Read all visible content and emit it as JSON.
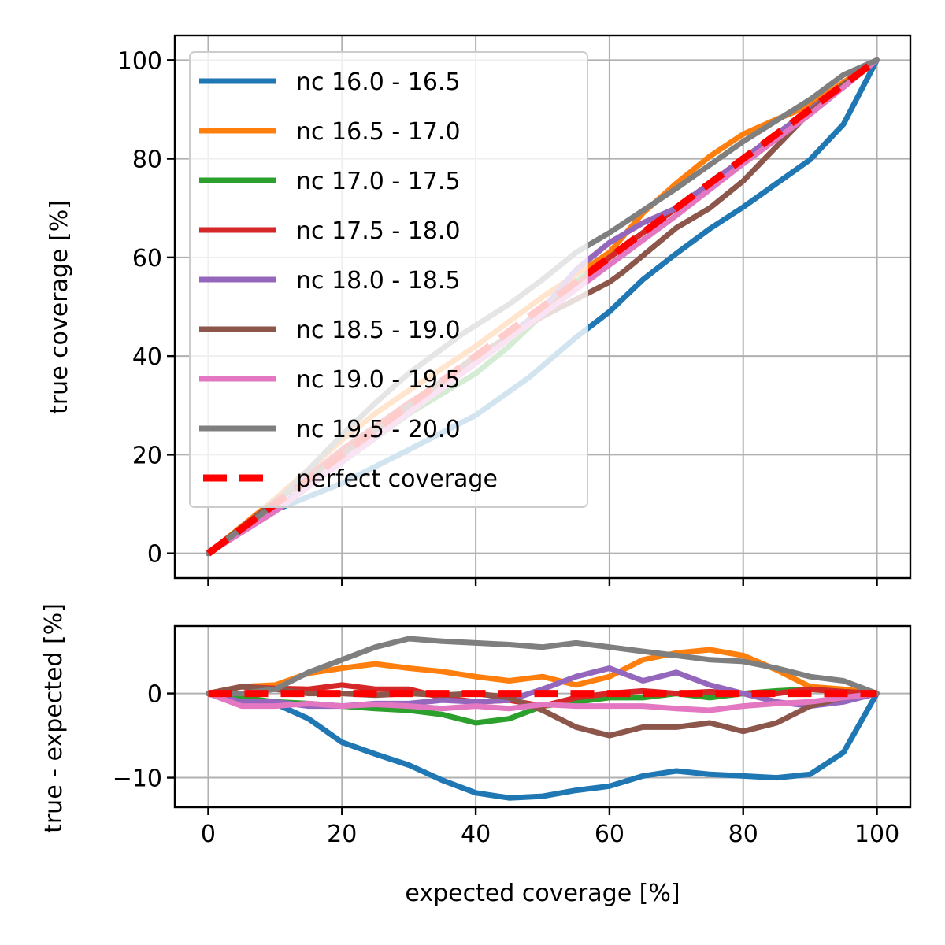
{
  "chart_data": [
    {
      "type": "line",
      "panel": "main",
      "xlim": [
        -5,
        105
      ],
      "ylim": [
        -5,
        105
      ],
      "xticks": [
        0,
        20,
        40,
        60,
        80,
        100
      ],
      "yticks": [
        0,
        20,
        40,
        60,
        80,
        100
      ],
      "xticks_labelled": false,
      "ylabel": "true coverage [%]",
      "grid": true,
      "legend": "upper-left",
      "series": [
        {
          "name": "nc 16.0 - 16.5",
          "color": "#1f77b4",
          "x": [
            0,
            10,
            20,
            30,
            40,
            48,
            55,
            60,
            65,
            70,
            75,
            80,
            85,
            90,
            95,
            100
          ],
          "y": [
            0,
            8.8,
            14.2,
            21.0,
            28.0,
            35.7,
            43.8,
            49.0,
            55.5,
            60.8,
            65.8,
            70.2,
            75.0,
            79.8,
            87.0,
            100
          ]
        },
        {
          "name": "nc 16.5 - 17.0",
          "color": "#ff7f0e",
          "x": [
            0,
            10,
            20,
            25,
            30,
            40,
            50,
            60,
            65,
            70,
            75,
            80,
            85,
            90,
            95,
            100
          ],
          "y": [
            0,
            11.0,
            23.0,
            28.4,
            33.0,
            42.0,
            52.0,
            61.0,
            69.0,
            75.0,
            80.5,
            85.0,
            88.0,
            90.8,
            95.5,
            100
          ]
        },
        {
          "name": "nc 17.0 - 17.5",
          "color": "#2ca02c",
          "x": [
            0,
            10,
            20,
            30,
            40,
            45,
            50,
            55,
            60,
            70,
            80,
            90,
            100
          ],
          "y": [
            0,
            9.0,
            18.5,
            28.3,
            36.5,
            42.0,
            48.5,
            55.0,
            60.0,
            70.0,
            80.0,
            90.0,
            100
          ]
        },
        {
          "name": "nc 17.5 - 18.0",
          "color": "#d62728",
          "x": [
            0,
            10,
            20,
            30,
            40,
            50,
            60,
            70,
            80,
            90,
            100
          ],
          "y": [
            0,
            10.5,
            21.0,
            30.5,
            39.0,
            48.5,
            60.0,
            70.0,
            80.0,
            90.0,
            100
          ]
        },
        {
          "name": "nc 18.0 - 18.5",
          "color": "#9467bd",
          "x": [
            0,
            10,
            20,
            30,
            40,
            50,
            55,
            60,
            65,
            70,
            80,
            90,
            95,
            100
          ],
          "y": [
            0,
            9.0,
            18.5,
            28.8,
            39.0,
            49.5,
            57.5,
            63.0,
            67.0,
            70.0,
            80.0,
            90.0,
            94.5,
            100
          ]
        },
        {
          "name": "nc 18.5 - 19.0",
          "color": "#8c564b",
          "x": [
            0,
            10,
            20,
            30,
            40,
            50,
            60,
            62,
            70,
            75,
            80,
            85,
            90,
            95,
            100
          ],
          "y": [
            0,
            10.5,
            20.0,
            30.0,
            40.0,
            48.0,
            55.0,
            57.0,
            66.0,
            70.0,
            75.5,
            82.5,
            89.5,
            95.0,
            100
          ]
        },
        {
          "name": "nc 19.0 - 19.5",
          "color": "#e377c2",
          "x": [
            0,
            10,
            20,
            30,
            40,
            50,
            60,
            70,
            80,
            90,
            100
          ],
          "y": [
            0,
            8.5,
            18.5,
            28.5,
            38.5,
            48.5,
            58.5,
            68.5,
            79.0,
            89.0,
            100
          ]
        },
        {
          "name": "nc 19.5 - 20.0",
          "color": "#7f7f7f",
          "x": [
            0,
            10,
            20,
            25,
            30,
            38,
            45,
            50,
            55,
            60,
            70,
            80,
            90,
            95,
            100
          ],
          "y": [
            0,
            10.0,
            24.0,
            30.5,
            36.5,
            44.5,
            50.5,
            55.5,
            61.0,
            65.0,
            74.0,
            83.5,
            92.0,
            97.0,
            100
          ]
        },
        {
          "name": "perfect coverage",
          "color": "#ff0000",
          "dashed": true,
          "x": [
            0,
            100
          ],
          "y": [
            0,
            100
          ]
        }
      ]
    },
    {
      "type": "line",
      "panel": "residual",
      "xlim": [
        -5,
        105
      ],
      "ylim": [
        -13.5,
        8
      ],
      "xticks": [
        0,
        20,
        40,
        60,
        80,
        100
      ],
      "yticks": [
        -10,
        0
      ],
      "xlabel": "expected coverage [%]",
      "ylabel": "true - expected [%]",
      "grid": true,
      "series": [
        {
          "name": "nc 16.0 - 16.5",
          "color": "#1f77b4",
          "x": [
            0,
            5,
            10,
            15,
            20,
            25,
            30,
            35,
            40,
            45,
            50,
            55,
            60,
            65,
            70,
            75,
            80,
            85,
            90,
            95,
            100
          ],
          "y": [
            0,
            -0.4,
            -1.2,
            -3.0,
            -5.8,
            -7.2,
            -8.5,
            -10.3,
            -11.8,
            -12.4,
            -12.2,
            -11.5,
            -11.0,
            -9.8,
            -9.2,
            -9.6,
            -9.8,
            -10.0,
            -9.6,
            -7.0,
            0
          ]
        },
        {
          "name": "nc 16.5 - 17.0",
          "color": "#ff7f0e",
          "x": [
            0,
            5,
            10,
            15,
            20,
            25,
            30,
            35,
            40,
            45,
            50,
            55,
            60,
            65,
            70,
            75,
            80,
            85,
            90,
            95,
            100
          ],
          "y": [
            0,
            0.8,
            1.0,
            2.4,
            3.0,
            3.5,
            3.0,
            2.6,
            2.0,
            1.5,
            2.0,
            1.0,
            2.0,
            4.0,
            4.8,
            5.2,
            4.5,
            2.8,
            0.8,
            0.5,
            0
          ]
        },
        {
          "name": "nc 17.0 - 17.5",
          "color": "#2ca02c",
          "x": [
            0,
            5,
            10,
            15,
            20,
            25,
            30,
            35,
            40,
            45,
            50,
            55,
            60,
            65,
            70,
            75,
            80,
            85,
            90,
            95,
            100
          ],
          "y": [
            0,
            -0.5,
            -1.0,
            -1.2,
            -1.5,
            -1.8,
            -2.0,
            -2.5,
            -3.5,
            -3.0,
            -1.5,
            -1.0,
            -0.5,
            -0.5,
            0,
            -0.5,
            0,
            0.3,
            0.5,
            0.2,
            0
          ]
        },
        {
          "name": "nc 17.5 - 18.0",
          "color": "#d62728",
          "x": [
            0,
            5,
            10,
            15,
            20,
            25,
            30,
            35,
            40,
            45,
            50,
            55,
            60,
            65,
            70,
            75,
            80,
            85,
            90,
            95,
            100
          ],
          "y": [
            0,
            0.8,
            0.6,
            0.5,
            1.0,
            0.5,
            0.5,
            -0.5,
            -1.0,
            -0.8,
            -1.5,
            -0.5,
            0,
            0.3,
            0,
            0.2,
            0,
            0,
            0.5,
            0.2,
            0
          ]
        },
        {
          "name": "nc 18.0 - 18.5",
          "color": "#9467bd",
          "x": [
            0,
            5,
            10,
            15,
            20,
            25,
            30,
            35,
            40,
            45,
            50,
            55,
            60,
            65,
            70,
            75,
            80,
            85,
            90,
            95,
            100
          ],
          "y": [
            0,
            -1.0,
            -1.0,
            -1.5,
            -1.5,
            -1.2,
            -1.2,
            -0.8,
            -1.0,
            -0.8,
            0.5,
            2.0,
            3.0,
            1.5,
            2.5,
            1.0,
            0,
            -1.0,
            -1.5,
            -1.0,
            0
          ]
        },
        {
          "name": "nc 18.5 - 19.0",
          "color": "#8c564b",
          "x": [
            0,
            5,
            10,
            15,
            20,
            25,
            30,
            35,
            40,
            45,
            50,
            55,
            60,
            65,
            70,
            75,
            80,
            85,
            90,
            95,
            100
          ],
          "y": [
            0,
            0.8,
            0.5,
            0,
            0,
            -0.2,
            0,
            -0.2,
            0,
            -0.5,
            -2.0,
            -4.0,
            -5.0,
            -4.0,
            -4.0,
            -3.5,
            -4.5,
            -3.5,
            -1.5,
            -0.5,
            0
          ]
        },
        {
          "name": "nc 19.0 - 19.5",
          "color": "#e377c2",
          "x": [
            0,
            5,
            10,
            15,
            20,
            25,
            30,
            35,
            40,
            45,
            50,
            55,
            60,
            65,
            70,
            75,
            80,
            85,
            90,
            95,
            100
          ],
          "y": [
            0,
            -1.5,
            -1.5,
            -1.2,
            -1.5,
            -1.3,
            -1.5,
            -1.8,
            -1.5,
            -1.8,
            -1.3,
            -1.5,
            -1.5,
            -1.5,
            -1.8,
            -2.0,
            -1.5,
            -1.2,
            -1.0,
            -0.5,
            0
          ]
        },
        {
          "name": "nc 19.5 - 20.0",
          "color": "#7f7f7f",
          "x": [
            0,
            5,
            10,
            15,
            20,
            25,
            30,
            35,
            40,
            45,
            50,
            55,
            60,
            65,
            70,
            75,
            80,
            85,
            90,
            95,
            100
          ],
          "y": [
            0,
            0,
            0.5,
            2.5,
            4.0,
            5.5,
            6.5,
            6.2,
            6.0,
            5.8,
            5.5,
            6.0,
            5.5,
            5.0,
            4.5,
            4.0,
            3.8,
            3.0,
            2.0,
            1.5,
            0
          ]
        },
        {
          "name": "perfect coverage",
          "color": "#ff0000",
          "dashed": true,
          "x": [
            0,
            100
          ],
          "y": [
            0,
            0
          ]
        }
      ]
    }
  ]
}
